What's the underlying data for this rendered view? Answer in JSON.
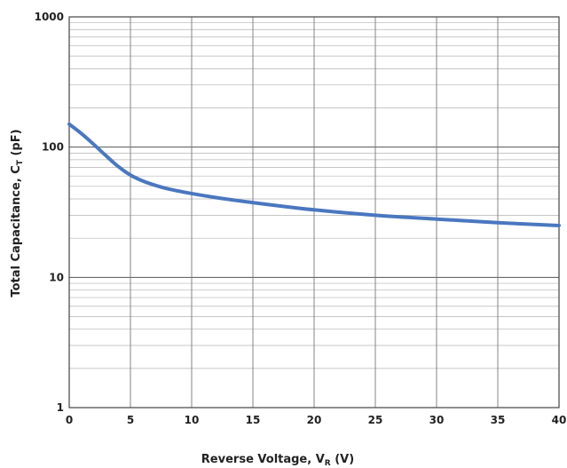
{
  "chart_data": {
    "type": "line",
    "title": "",
    "xlabel": {
      "main": "Reverse Voltage, V",
      "sub": "R",
      "tail": " (V)"
    },
    "ylabel": {
      "main": "Total Capacitance, C",
      "sub": "T",
      "tail": " (pF)"
    },
    "xlim": [
      0,
      40
    ],
    "ylim": [
      1,
      1000
    ],
    "yscale": "log",
    "grid": true,
    "x_ticks": [
      "0",
      "5",
      "10",
      "15",
      "20",
      "25",
      "30",
      "35",
      "40"
    ],
    "y_ticks": [
      "1",
      "10",
      "100",
      "1000"
    ],
    "series": [
      {
        "color": "#4a77bf",
        "x": [
          0,
          1,
          2,
          3,
          4,
          5,
          6,
          7,
          8,
          10,
          12,
          15,
          20,
          25,
          30,
          35,
          40
        ],
        "y": [
          150,
          127,
          105,
          86,
          71,
          61,
          55,
          51,
          48,
          44,
          41,
          37.5,
          33,
          30,
          28,
          26.3,
          25
        ]
      }
    ]
  }
}
